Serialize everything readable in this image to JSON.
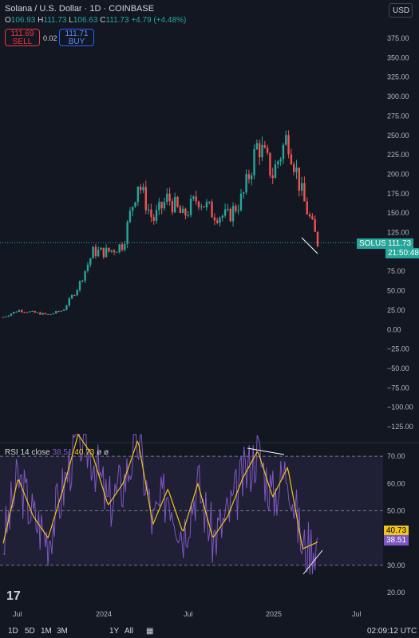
{
  "header": {
    "title": "Solana / U.S. Dollar · 1D · COINBASE",
    "ohlc": {
      "o_label": "O",
      "o": "106.93",
      "h_label": "H",
      "h": "111.73",
      "l_label": "L",
      "l": "106.63",
      "c_label": "C",
      "c": "111.73",
      "change": "+4.79 (+4.48%)"
    },
    "sell_price": "111.69",
    "sell_label": "SELL",
    "spread": "0.02",
    "buy_price": "111.71",
    "buy_label": "BUY",
    "currency": "USD"
  },
  "price_axis": [
    "375.00",
    "350.00",
    "325.00",
    "300.00",
    "275.00",
    "250.00",
    "225.00",
    "200.00",
    "175.00",
    "150.00",
    "125.00",
    "100.00",
    "75.00",
    "50.00",
    "25.00",
    "0.00",
    "−25.00",
    "−50.00",
    "−75.00",
    "−100.00",
    "−125.00"
  ],
  "price_tag": {
    "symbol": "SOLUSD",
    "price": "111.73",
    "countdown": "21:50:48"
  },
  "rsi": {
    "label": "RSI 14 close",
    "value1": "38.51",
    "value2": "40.73",
    "extra": "ø ø",
    "axis": [
      "70.00",
      "60.00",
      "50.00",
      "40.00",
      "30.00",
      "20.00"
    ]
  },
  "time_axis": [
    "Jul",
    "2024",
    "Jul",
    "2025",
    "Jul"
  ],
  "bottom_bar": {
    "ranges": [
      "1D",
      "5D",
      "1M",
      "3M",
      "1Y",
      "All"
    ],
    "time": "02:09:12 UTC"
  },
  "colors": {
    "up": "#26a69a",
    "down": "#ef5350",
    "rsi_line": "#7e57c2",
    "rsi_ma": "#f0c419",
    "bg": "#131722"
  },
  "chart_data": {
    "type": "candlestick",
    "x": [
      "2023-06",
      "2023-07",
      "2023-08",
      "2023-09",
      "2023-10",
      "2023-11",
      "2023-12",
      "2024-01",
      "2024-02",
      "2024-03",
      "2024-04",
      "2024-05",
      "2024-06",
      "2024-07",
      "2024-08",
      "2024-09",
      "2024-10",
      "2024-11",
      "2024-12",
      "2025-01",
      "2025-02",
      "2025-03"
    ],
    "close": [
      16,
      25,
      22,
      19,
      25,
      55,
      100,
      100,
      110,
      190,
      140,
      170,
      145,
      170,
      150,
      145,
      170,
      240,
      200,
      250,
      170,
      112
    ],
    "ylim": [
      -130,
      385
    ],
    "rsi": [
      38,
      62,
      48,
      40,
      58,
      78,
      70,
      52,
      60,
      76,
      45,
      58,
      42,
      60,
      40,
      48,
      62,
      72,
      55,
      66,
      36,
      38.51
    ],
    "rsi_ylim": [
      15,
      75
    ]
  }
}
